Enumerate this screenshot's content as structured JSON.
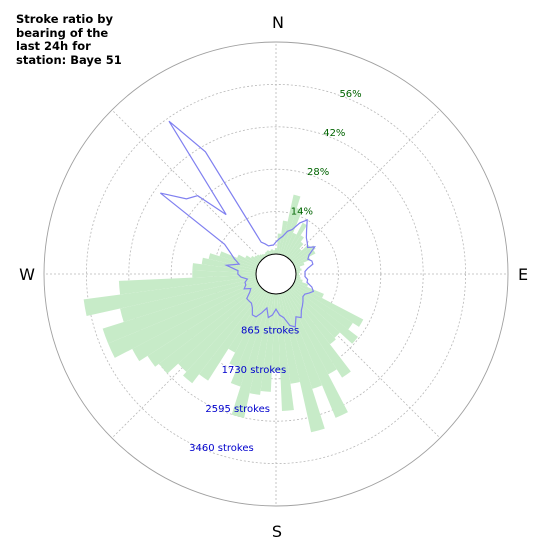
{
  "chart_data": {
    "type": "polar",
    "title": "Stroke ratio by bearing of the last 24h for station: Baye 51",
    "direction_labels": [
      "N",
      "E",
      "S",
      "W"
    ],
    "ratio_tick_labels": [
      "14%",
      "28%",
      "42%",
      "56%"
    ],
    "ratio_tick_values": [
      14,
      28,
      42,
      56
    ],
    "ratio_max": 70,
    "count_tick_labels": [
      "865 strokes",
      "1730 strokes",
      "2595 strokes",
      "3460 strokes"
    ],
    "count_tick_values": [
      865,
      1730,
      2595,
      3460
    ],
    "count_max": 4325,
    "grid": true,
    "colors": {
      "bars": "#c7ebc8",
      "line": "#8080f0",
      "ratio_labels": "#006400",
      "count_labels": "#0000cd"
    },
    "series": [
      {
        "type": "bar",
        "units": "strokes",
        "bearing_step_deg": 5,
        "bearings_deg": [
          0,
          5,
          10,
          15,
          20,
          25,
          30,
          35,
          40,
          45,
          50,
          55,
          60,
          65,
          70,
          75,
          80,
          85,
          90,
          95,
          100,
          105,
          110,
          115,
          120,
          125,
          130,
          135,
          140,
          145,
          150,
          155,
          160,
          165,
          170,
          175,
          180,
          185,
          190,
          195,
          200,
          205,
          210,
          215,
          220,
          225,
          230,
          235,
          240,
          245,
          250,
          255,
          260,
          265,
          270,
          275,
          280,
          285,
          290,
          295,
          300,
          305,
          310,
          315,
          320,
          325,
          330,
          335,
          340,
          345,
          350,
          355
        ],
        "values": [
          120,
          420,
          690,
          1250,
          1000,
          500,
          770,
          530,
          420,
          300,
          480,
          550,
          500,
          350,
          200,
          100,
          120,
          80,
          60,
          80,
          100,
          150,
          280,
          650,
          1600,
          1450,
          1700,
          1360,
          1400,
          2100,
          1900,
          2770,
          2050,
          2900,
          1850,
          2390,
          1580,
          2000,
          2080,
          2600,
          2000,
          1650,
          1400,
          2170,
          2400,
          2300,
          2600,
          2700,
          2900,
          3300,
          3300,
          2850,
          3550,
          2800,
          1300,
          1300,
          1120,
          1000,
          800,
          450,
          300,
          200,
          150,
          130,
          100,
          80,
          60,
          80,
          100,
          80,
          100,
          80
        ]
      },
      {
        "type": "line",
        "units": "ratio %",
        "bearing_step_deg": 5,
        "bearings_deg": [
          0,
          5,
          10,
          15,
          20,
          25,
          30,
          35,
          40,
          45,
          50,
          55,
          60,
          65,
          70,
          75,
          80,
          85,
          90,
          95,
          100,
          105,
          110,
          115,
          120,
          125,
          130,
          135,
          140,
          145,
          150,
          155,
          160,
          165,
          170,
          175,
          180,
          185,
          190,
          195,
          200,
          205,
          210,
          215,
          220,
          225,
          230,
          235,
          240,
          245,
          250,
          255,
          260,
          265,
          270,
          275,
          280,
          285,
          290,
          295,
          300,
          305,
          310,
          315,
          320,
          325,
          330,
          335,
          340,
          345,
          350,
          355
        ],
        "values": [
          4,
          5,
          6,
          8,
          9,
          12,
          14,
          11,
          9,
          8,
          7,
          9,
          6,
          5,
          6,
          6,
          4,
          3,
          3,
          3,
          4,
          4,
          6,
          7,
          6,
          5,
          5,
          6,
          7,
          8,
          10,
          9,
          12,
          11,
          8,
          7,
          5,
          7,
          8,
          5,
          7,
          9,
          9,
          7,
          6,
          6,
          6,
          4,
          3,
          5,
          4,
          4,
          3,
          5,
          6,
          6,
          10,
          6,
          8,
          10,
          13,
          40,
          32,
          30,
          19,
          55,
          40,
          5,
          4,
          3,
          3,
          3
        ]
      }
    ]
  }
}
